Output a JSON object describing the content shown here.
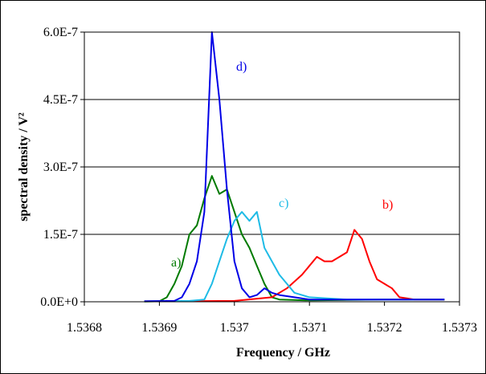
{
  "chart_data": {
    "type": "line",
    "title": "",
    "xlabel": "Frequency / GHz",
    "ylabel": "spectral density / V²",
    "xlim": [
      1.5368,
      1.5373
    ],
    "ylim": [
      0,
      6e-07
    ],
    "x_ticks": [
      "1.5368",
      "1.5369",
      "1.537",
      "1.5371",
      "1.5372",
      "1.5373"
    ],
    "y_ticks": [
      "0.0E+0",
      "1.5E-7",
      "3.0E-7",
      "4.5E-7",
      "6.0E-7"
    ],
    "grid": "horizontal",
    "legend": "none",
    "series": [
      {
        "name": "a)",
        "color": "#007a00",
        "points": [
          [
            1.53688,
            5e-10
          ],
          [
            1.5369,
            1e-09
          ],
          [
            1.53691,
            1e-08
          ],
          [
            1.53692,
            4e-08
          ],
          [
            1.53693,
            8e-08
          ],
          [
            1.53694,
            1.5e-07
          ],
          [
            1.53695,
            1.7e-07
          ],
          [
            1.53696,
            2.3e-07
          ],
          [
            1.53697,
            2.8e-07
          ],
          [
            1.53698,
            2.4e-07
          ],
          [
            1.53699,
            2.5e-07
          ],
          [
            1.537,
            2e-07
          ],
          [
            1.53701,
            1.5e-07
          ],
          [
            1.53702,
            1.2e-07
          ],
          [
            1.53703,
            8e-08
          ],
          [
            1.53704,
            4e-08
          ],
          [
            1.53705,
            1e-08
          ],
          [
            1.53706,
            5e-09
          ],
          [
            1.5371,
            3e-09
          ],
          [
            1.5372,
            5e-09
          ],
          [
            1.53728,
            5e-09
          ]
        ]
      },
      {
        "name": "b)",
        "color": "#ff0000",
        "points": [
          [
            1.53688,
            1e-09
          ],
          [
            1.537,
            2e-09
          ],
          [
            1.53705,
            1e-08
          ],
          [
            1.53707,
            3e-08
          ],
          [
            1.53709,
            6e-08
          ],
          [
            1.5371,
            8e-08
          ],
          [
            1.53711,
            1e-07
          ],
          [
            1.53712,
            9e-08
          ],
          [
            1.53713,
            9e-08
          ],
          [
            1.53714,
            1e-07
          ],
          [
            1.53715,
            1.1e-07
          ],
          [
            1.53716,
            1.6e-07
          ],
          [
            1.53717,
            1.4e-07
          ],
          [
            1.53718,
            9e-08
          ],
          [
            1.53719,
            5e-08
          ],
          [
            1.5372,
            4e-08
          ],
          [
            1.53721,
            3e-08
          ],
          [
            1.53722,
            1e-08
          ],
          [
            1.53724,
            5e-09
          ],
          [
            1.53728,
            5e-09
          ]
        ]
      },
      {
        "name": "c)",
        "color": "#1ebbe6",
        "points": [
          [
            1.53688,
            1e-09
          ],
          [
            1.53694,
            2e-09
          ],
          [
            1.53696,
            5e-09
          ],
          [
            1.53697,
            4e-08
          ],
          [
            1.53698,
            9e-08
          ],
          [
            1.53699,
            1.4e-07
          ],
          [
            1.537,
            1.8e-07
          ],
          [
            1.53701,
            2e-07
          ],
          [
            1.53702,
            1.8e-07
          ],
          [
            1.53703,
            2e-07
          ],
          [
            1.53704,
            1.2e-07
          ],
          [
            1.53705,
            9e-08
          ],
          [
            1.53706,
            6e-08
          ],
          [
            1.53707,
            4e-08
          ],
          [
            1.53708,
            2e-08
          ],
          [
            1.5371,
            1e-08
          ],
          [
            1.53715,
            5e-09
          ],
          [
            1.53728,
            5e-09
          ]
        ]
      },
      {
        "name": "d)",
        "color": "#0000e6",
        "points": [
          [
            1.53688,
            1e-09
          ],
          [
            1.53692,
            2e-09
          ],
          [
            1.53693,
            1e-08
          ],
          [
            1.53694,
            4e-08
          ],
          [
            1.53695,
            9e-08
          ],
          [
            1.53696,
            2e-07
          ],
          [
            1.53697,
            6e-07
          ],
          [
            1.53698,
            4.5e-07
          ],
          [
            1.53699,
            2.5e-07
          ],
          [
            1.537,
            9e-08
          ],
          [
            1.53701,
            3e-08
          ],
          [
            1.53702,
            1e-08
          ],
          [
            1.53703,
            1.5e-08
          ],
          [
            1.53704,
            3e-08
          ],
          [
            1.53705,
            2e-08
          ],
          [
            1.53706,
            1.5e-08
          ],
          [
            1.53708,
            1e-08
          ],
          [
            1.5371,
            5e-09
          ],
          [
            1.53715,
            5e-09
          ],
          [
            1.53728,
            5e-09
          ]
        ]
      }
    ]
  }
}
